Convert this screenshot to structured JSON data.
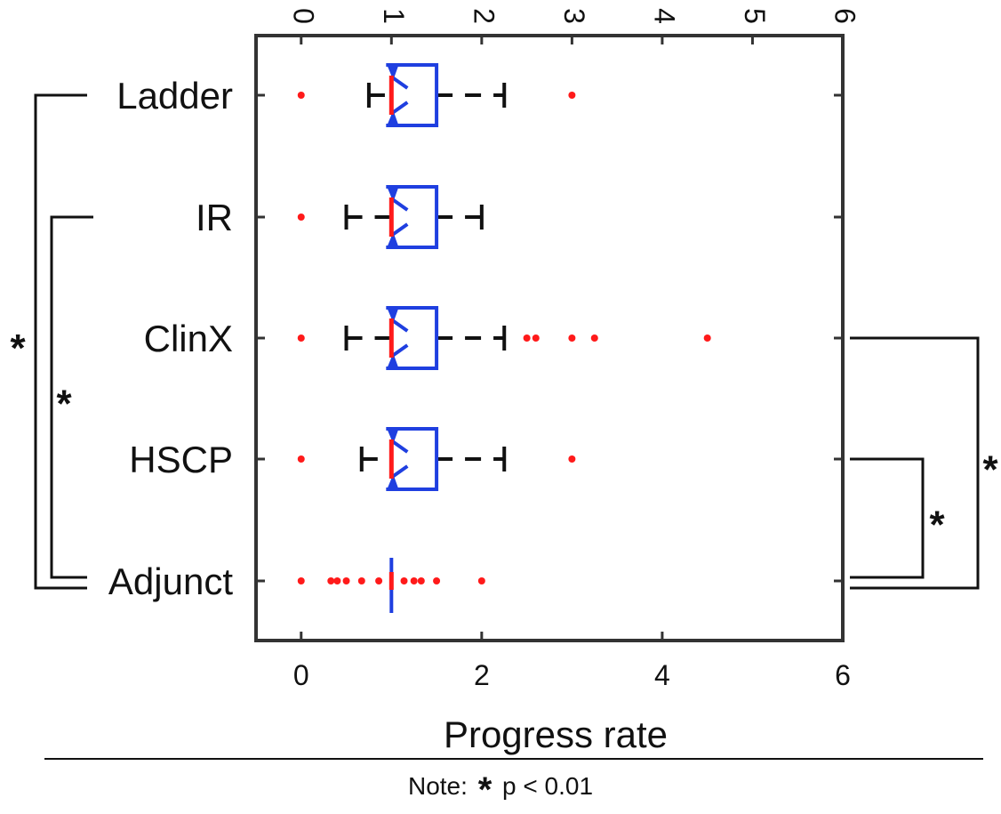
{
  "chart_data": {
    "type": "boxplot",
    "xlabel": "Progress rate",
    "xlim": [
      -0.5,
      6
    ],
    "xticks_bottom": [
      0,
      2,
      4,
      6
    ],
    "xticks_top": [
      0,
      1,
      2,
      3,
      4,
      5,
      6
    ],
    "orientation": "horizontal",
    "notched": true,
    "colors": {
      "box": "#1f3fe0",
      "median": "#ff1a1a",
      "outlier": "#ff1a1a",
      "whisker": "#111111",
      "axes": "#333333"
    },
    "groups": [
      {
        "category": "Ladder",
        "whisker_low": 0.75,
        "q1": 1.0,
        "median": 1.0,
        "q3": 1.5,
        "whisker_high": 2.25,
        "outliers": [
          0,
          3
        ]
      },
      {
        "category": "IR",
        "whisker_low": 0.5,
        "q1": 1.0,
        "median": 1.0,
        "q3": 1.5,
        "whisker_high": 2.0,
        "outliers": [
          0
        ]
      },
      {
        "category": "ClinX",
        "whisker_low": 0.5,
        "q1": 1.0,
        "median": 1.0,
        "q3": 1.5,
        "whisker_high": 2.25,
        "outliers": [
          0,
          2.5,
          2.6,
          3.0,
          3.25,
          4.5
        ]
      },
      {
        "category": "HSCP",
        "whisker_low": 0.67,
        "q1": 1.0,
        "median": 1.0,
        "q3": 1.5,
        "whisker_high": 2.25,
        "outliers": [
          0,
          3
        ]
      },
      {
        "category": "Adjunct",
        "whisker_low": 1.0,
        "q1": 1.0,
        "median": 1.0,
        "q3": 1.0,
        "whisker_high": 1.0,
        "outliers": [
          0,
          0.33,
          0.4,
          0.5,
          0.67,
          0.86,
          1.14,
          1.25,
          1.33,
          1.5,
          2.0
        ]
      }
    ],
    "significance": [
      {
        "from": "Ladder",
        "to": "Adjunct",
        "side": "left",
        "label": "*"
      },
      {
        "from": "IR",
        "to": "Adjunct",
        "side": "left",
        "label": "*"
      },
      {
        "from": "HSCP",
        "to": "Adjunct",
        "side": "right",
        "label": "*"
      },
      {
        "from": "ClinX",
        "to": "Adjunct",
        "side": "right",
        "label": "*"
      }
    ]
  },
  "note": {
    "prefix": "Note:",
    "symbol": "*",
    "text": "p < 0.01"
  }
}
